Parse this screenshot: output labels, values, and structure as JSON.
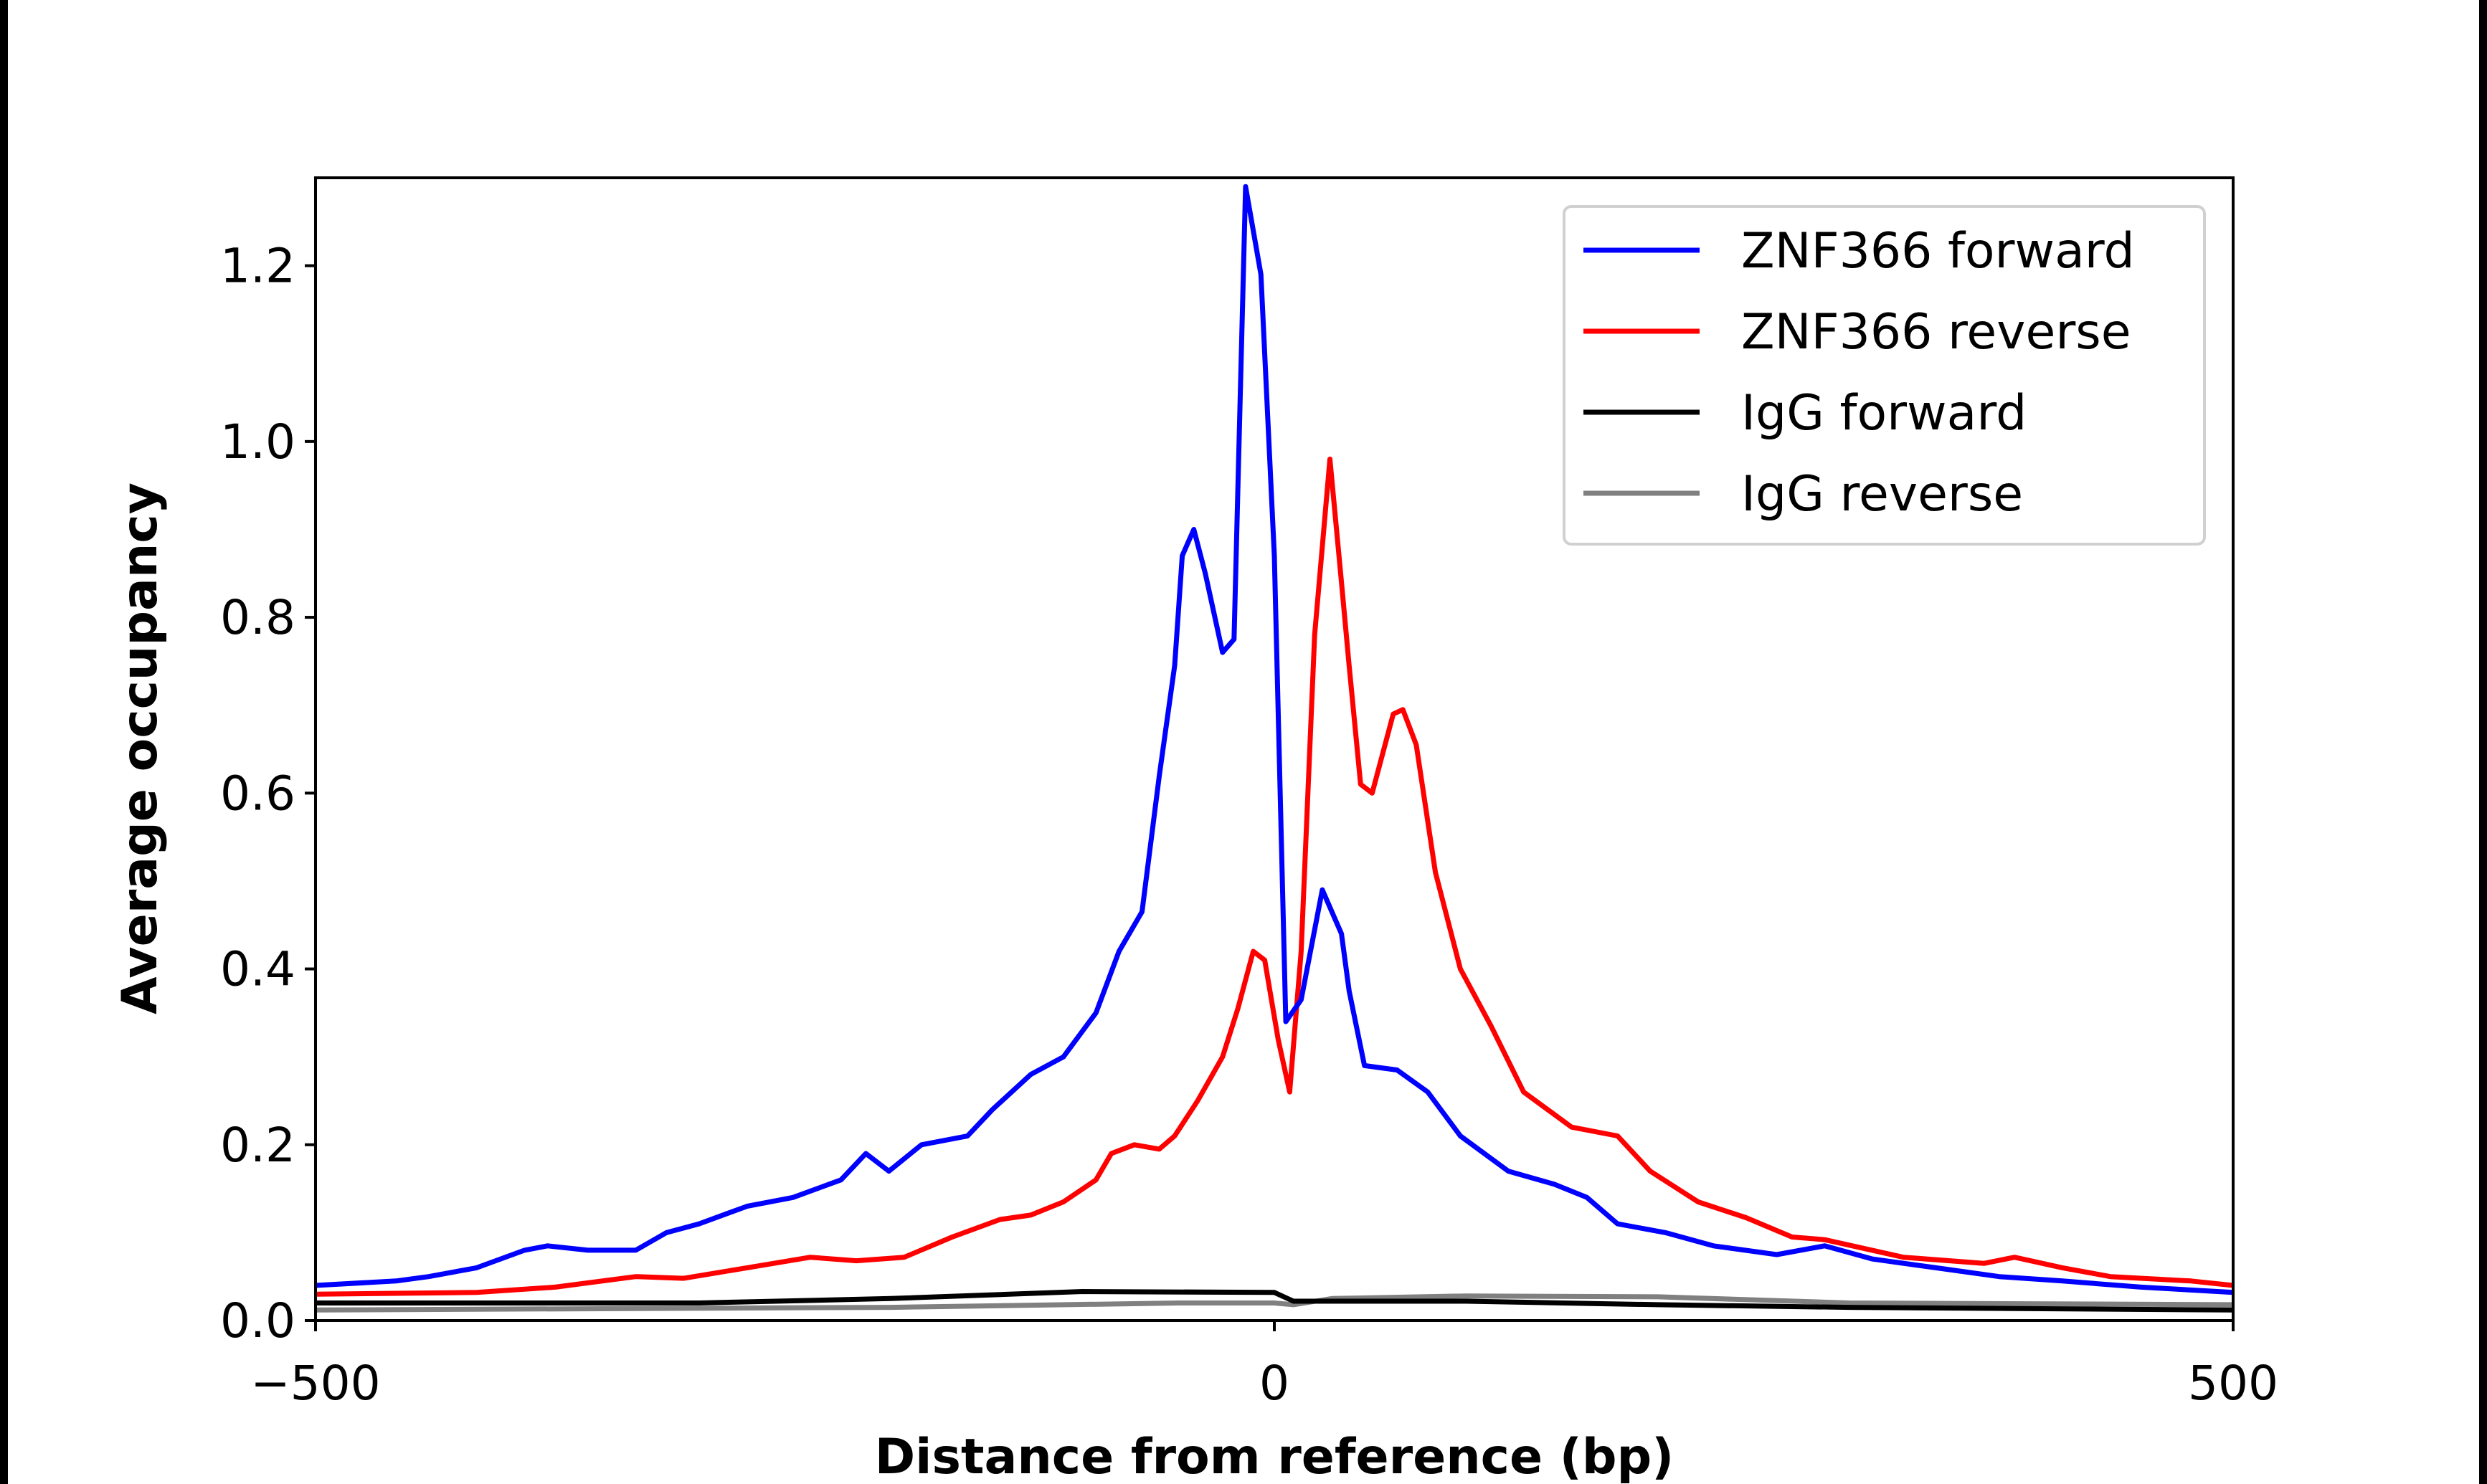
{
  "chart_data": {
    "type": "line",
    "title": "",
    "xlabel": "Distance from reference (bp)",
    "ylabel": "Average occupancy",
    "xlim": [
      -500,
      500
    ],
    "ylim": [
      0,
      1.3
    ],
    "xticks": [
      -500,
      0,
      500
    ],
    "xtick_labels": [
      "−500",
      "0",
      "500"
    ],
    "yticks": [
      0.0,
      0.2,
      0.4,
      0.6,
      0.8,
      1.0,
      1.2
    ],
    "ytick_labels": [
      "0.0",
      "0.2",
      "0.4",
      "0.6",
      "0.8",
      "1.0",
      "1.2"
    ],
    "grid": false,
    "legend_position": "top-right",
    "series": [
      {
        "name": "ZNF366 forward",
        "color": "#0000ff",
        "x": [
          -500,
          -458,
          -441,
          -416,
          -391,
          -379,
          -358,
          -333,
          -317,
          -300,
          -275,
          -251,
          -226,
          -213,
          -201,
          -184,
          -160,
          -147,
          -127,
          -110,
          -93,
          -81,
          -69,
          -60,
          -52,
          -48,
          -42,
          -36,
          -27,
          -21,
          -15,
          -7,
          0,
          6,
          14,
          25,
          35,
          39,
          47,
          64,
          80,
          97,
          122,
          146,
          163,
          179,
          204,
          229,
          262,
          287,
          312,
          345,
          378,
          411,
          452,
          500
        ],
        "y": [
          0.04,
          0.045,
          0.05,
          0.06,
          0.08,
          0.085,
          0.08,
          0.08,
          0.1,
          0.11,
          0.13,
          0.14,
          0.16,
          0.19,
          0.17,
          0.2,
          0.21,
          0.24,
          0.28,
          0.3,
          0.35,
          0.42,
          0.465,
          0.62,
          0.745,
          0.87,
          0.9,
          0.85,
          0.76,
          0.775,
          1.29,
          1.19,
          0.87,
          0.34,
          0.365,
          0.49,
          0.44,
          0.375,
          0.29,
          0.285,
          0.26,
          0.21,
          0.17,
          0.155,
          0.14,
          0.11,
          0.1,
          0.085,
          0.075,
          0.085,
          0.07,
          0.06,
          0.05,
          0.045,
          0.038,
          0.032
        ]
      },
      {
        "name": "ZNF366 reverse",
        "color": "#ff0000",
        "x": [
          -500,
          -416,
          -375,
          -333,
          -308,
          -275,
          -242,
          -218,
          -193,
          -168,
          -143,
          -127,
          -110,
          -93,
          -85,
          -73,
          -60,
          -52,
          -40,
          -27,
          -19,
          -11,
          -5,
          2,
          8,
          14,
          21,
          29,
          35,
          39,
          45,
          51,
          62,
          67,
          74,
          84,
          97,
          113,
          130,
          155,
          179,
          196,
          221,
          246,
          270,
          287,
          328,
          370,
          386,
          411,
          436,
          478,
          500
        ],
        "y": [
          0.03,
          0.032,
          0.038,
          0.05,
          0.048,
          0.06,
          0.072,
          0.068,
          0.072,
          0.095,
          0.115,
          0.12,
          0.135,
          0.16,
          0.19,
          0.2,
          0.195,
          0.21,
          0.25,
          0.3,
          0.355,
          0.42,
          0.41,
          0.32,
          0.26,
          0.42,
          0.78,
          0.98,
          0.84,
          0.745,
          0.61,
          0.6,
          0.69,
          0.695,
          0.655,
          0.51,
          0.4,
          0.335,
          0.26,
          0.22,
          0.21,
          0.17,
          0.135,
          0.117,
          0.095,
          0.092,
          0.072,
          0.065,
          0.072,
          0.06,
          0.05,
          0.045,
          0.04
        ]
      },
      {
        "name": "IgG forward",
        "color": "#000000",
        "x": [
          -500,
          -300,
          -200,
          -100,
          0,
          10,
          50,
          100,
          200,
          300,
          500
        ],
        "y": [
          0.02,
          0.02,
          0.025,
          0.033,
          0.032,
          0.022,
          0.022,
          0.022,
          0.018,
          0.015,
          0.012
        ]
      },
      {
        "name": "IgG reverse",
        "color": "#808080",
        "x": [
          -500,
          -200,
          -50,
          0,
          10,
          30,
          100,
          200,
          300,
          500
        ],
        "y": [
          0.012,
          0.015,
          0.02,
          0.02,
          0.018,
          0.025,
          0.028,
          0.027,
          0.02,
          0.018
        ]
      }
    ]
  }
}
